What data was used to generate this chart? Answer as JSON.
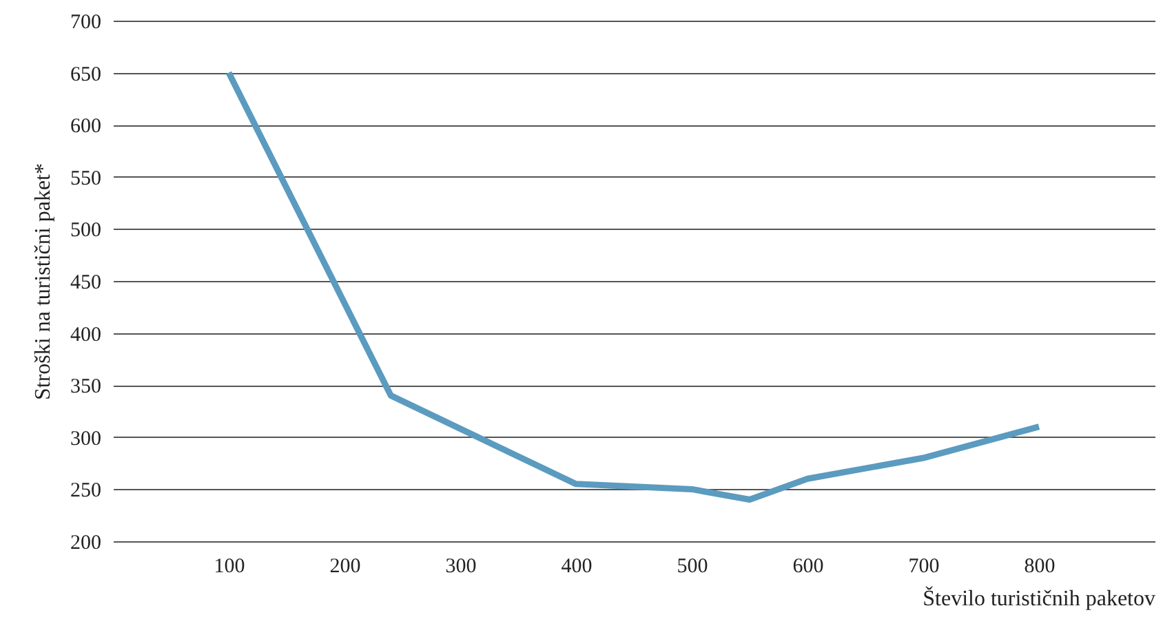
{
  "chart_data": {
    "type": "line",
    "xlabel": "Število turističnih paketov",
    "ylabel": "Stroški na turistični paket*",
    "x": [
      100,
      240,
      400,
      500,
      550,
      600,
      700,
      800
    ],
    "series": [
      {
        "color": "#5b9bbf",
        "values": [
          650,
          340,
          255,
          250,
          240,
          260,
          280,
          310
        ]
      }
    ],
    "xlim": [
      0,
      900
    ],
    "xticks": [
      100,
      200,
      300,
      400,
      500,
      600,
      700,
      800
    ],
    "ylim": [
      200,
      700
    ],
    "yticks": [
      200,
      250,
      300,
      350,
      400,
      450,
      500,
      550,
      600,
      650,
      700
    ],
    "grid": "y",
    "marker": "none",
    "line_style": "solid"
  }
}
